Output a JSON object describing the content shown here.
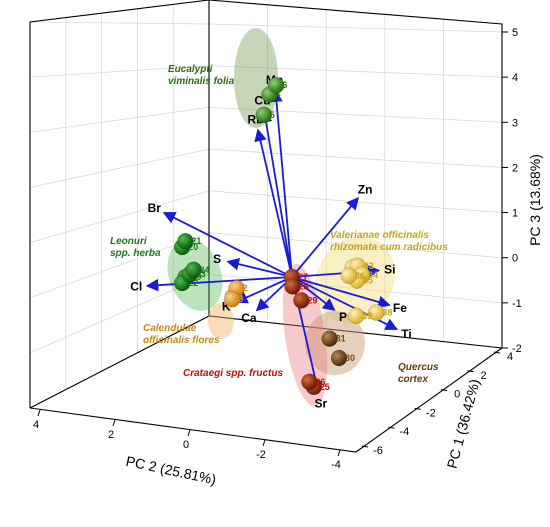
{
  "chart_data": {
    "type": "scatter",
    "subtype": "pca-biplot-3d",
    "xlabel": "PC 2 (25.81%)",
    "ylabel": "PC 1 (36.42%)",
    "zlabel": "PC 3 (13.68%)",
    "x_ticks": [
      "4",
      "2",
      "0",
      "-2",
      "-4"
    ],
    "y_ticks": [
      "-6",
      "-4",
      "-2",
      "0",
      "2",
      "4"
    ],
    "z_ticks": [
      "-2",
      "-1",
      "0",
      "1",
      "2",
      "3",
      "4",
      "5"
    ],
    "grid": true,
    "loadings": [
      {
        "name": "Mn",
        "pc2": 0.4,
        "pc1": 0.2,
        "pc3": 4.6
      },
      {
        "name": "Cu",
        "pc2": 0.6,
        "pc1": 0.8,
        "pc3": 3.9
      },
      {
        "name": "Rb",
        "pc2": 0.7,
        "pc1": 1.2,
        "pc3": 3.3
      },
      {
        "name": "Br",
        "pc2": 3.2,
        "pc1": 0.9,
        "pc3": 1.6
      },
      {
        "name": "Zn",
        "pc2": -1.8,
        "pc1": 0.5,
        "pc3": 1.6
      },
      {
        "name": "S",
        "pc2": 1.6,
        "pc1": 0.4,
        "pc3": 0.4
      },
      {
        "name": "Si",
        "pc2": -2.1,
        "pc1": -1.0,
        "pc3": 0.3
      },
      {
        "name": "Fe",
        "pc2": -2.3,
        "pc1": -1.5,
        "pc3": -0.4
      },
      {
        "name": "Ti",
        "pc2": -2.4,
        "pc1": -2.1,
        "pc3": -0.8
      },
      {
        "name": "P",
        "pc2": -1.0,
        "pc1": -0.6,
        "pc3": -0.7
      },
      {
        "name": "Cl",
        "pc2": 3.5,
        "pc1": 1.8,
        "pc3": -0.5
      },
      {
        "name": "K",
        "pc2": 1.3,
        "pc1": 0.9,
        "pc3": -0.8
      },
      {
        "name": "Ca",
        "pc2": 0.7,
        "pc1": 1.3,
        "pc3": -1.2
      },
      {
        "name": "Sr",
        "pc2": -0.5,
        "pc1": -1.2,
        "pc3": -2.5
      }
    ],
    "groups": [
      {
        "name": "Eucalypti viminalis folia",
        "label_lines": [
          "Eucalypti",
          "viminalis folia"
        ],
        "color": "#2e6b10",
        "points": [
          {
            "id": "4",
            "pc2": 0.5,
            "pc1": 0.6,
            "pc3": 4.4
          },
          {
            "id": "5",
            "pc2": 0.6,
            "pc1": 0.9,
            "pc3": 3.8
          },
          {
            "id": "6",
            "pc2": 0.4,
            "pc1": 0.1,
            "pc3": 4.8
          }
        ]
      },
      {
        "name": "Leonuri spp. herba",
        "label_lines": [
          "Leonuri",
          "spp. herba"
        ],
        "color": "#1a7a1a",
        "points": [
          {
            "id": "19",
            "pc2": 2.6,
            "pc1": 1.3,
            "pc3": -0.2
          },
          {
            "id": "20",
            "pc2": 2.7,
            "pc1": 1.2,
            "pc3": 0.6
          },
          {
            "id": "21",
            "pc2": 2.6,
            "pc1": 1.3,
            "pc3": 0.7
          },
          {
            "id": "22",
            "pc2": 2.7,
            "pc1": 1.2,
            "pc3": -0.3
          },
          {
            "id": "23",
            "pc2": 2.5,
            "pc1": 1.2,
            "pc3": -0.1
          },
          {
            "id": "24",
            "pc2": 2.4,
            "pc1": 1.2,
            "pc3": 0.0
          }
        ]
      },
      {
        "name": "Calendulae officinalis flores",
        "label_lines": [
          "Calendulae",
          "officinalis flores"
        ],
        "color": "#d48c1e",
        "points": [
          {
            "id": "1",
            "pc2": 1.4,
            "pc1": 1.0,
            "pc3": -0.7
          },
          {
            "id": "2",
            "pc2": 1.3,
            "pc1": 1.0,
            "pc3": -0.5
          },
          {
            "id": "3",
            "pc2": 1.4,
            "pc1": 1.1,
            "pc3": -0.8
          }
        ]
      },
      {
        "name": "Valerianae officinalis rhizomata cum radicibus",
        "label_lines": [
          "Valerianae officinalis",
          "rhizomata cum radicibus"
        ],
        "color": "#c9a416",
        "points": [
          {
            "id": "32",
            "pc2": -1.5,
            "pc1": -0.6,
            "pc3": 0.3
          },
          {
            "id": "33",
            "pc2": -1.6,
            "pc1": -0.8,
            "pc3": 0.4
          },
          {
            "id": "34",
            "pc2": -1.7,
            "pc1": -0.9,
            "pc3": 0.2
          },
          {
            "id": "35",
            "pc2": -1.6,
            "pc1": -0.7,
            "pc3": 0.0
          },
          {
            "id": "36",
            "pc2": -1.4,
            "pc1": -0.6,
            "pc3": 0.1
          },
          {
            "id": "38",
            "pc2": -2.0,
            "pc1": -1.4,
            "pc3": -0.6
          },
          {
            "id": "39",
            "pc2": -1.5,
            "pc1": -1.2,
            "pc3": -0.7
          }
        ]
      },
      {
        "name": "Crataegi spp. fructus",
        "label_lines": [
          "Crataegi spp. fructus"
        ],
        "color": "#b5120a",
        "points": [
          {
            "id": "25",
            "pc2": -0.4,
            "pc1": -1.1,
            "pc3": -2.4
          },
          {
            "id": "26",
            "pc2": -0.3,
            "pc1": -1.0,
            "pc3": -2.3
          },
          {
            "id": "27",
            "pc2": 0.0,
            "pc1": 0.0,
            "pc3": 0.0
          },
          {
            "id": "28",
            "pc2": 0.0,
            "pc1": -0.1,
            "pc3": -0.2
          },
          {
            "id": "29",
            "pc2": -0.2,
            "pc1": -0.3,
            "pc3": -0.5
          }
        ]
      },
      {
        "name": "Quercus cortex",
        "label_lines": [
          "Quercus",
          "cortex"
        ],
        "color": "#7a4510",
        "points": [
          {
            "id": "30",
            "pc2": -1.0,
            "pc1": -1.5,
            "pc3": -1.6
          },
          {
            "id": "31",
            "pc2": -0.8,
            "pc1": -1.2,
            "pc3": -1.2
          }
        ]
      }
    ]
  }
}
